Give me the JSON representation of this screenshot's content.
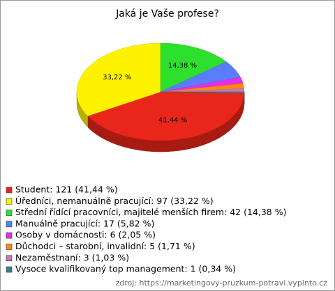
{
  "chart_data": {
    "type": "pie",
    "title": "Jaká je Vaše profese?",
    "categories": [
      "Student: 121 (41,44 %)",
      "Úředníci, nemanuálně pracující: 97 (33,22 %)",
      "Střední řídící pracovníci, majitelé menších firem: 42 (14,38 %)",
      "Manuálně pracující: 17 (5,82 %)",
      "Osoby v domácnosti: 6 (2,05 %)",
      "Důchodci – starobní, invalidní: 5 (1,71 %)",
      "Nezaměstnaní: 3 (1,03 %)",
      "Vysoce kvalifikovaný top management: 1 (0,34 %)"
    ],
    "values": [
      41.44,
      33.22,
      14.38,
      5.82,
      2.05,
      1.71,
      1.03,
      0.34
    ],
    "value_labels": [
      "41,44 %",
      "33,22 %",
      "14,38 %",
      null,
      null,
      null,
      null,
      null
    ],
    "colors": [
      "#e8261a",
      "#fff200",
      "#2ee02e",
      "#5a7cff",
      "#e62ee6",
      "#ff8a10",
      "#c878b4",
      "#3a7f8f"
    ],
    "source": "zdroj: https://marketingovy-pruzkum-potravi.vyplnto.cz"
  }
}
